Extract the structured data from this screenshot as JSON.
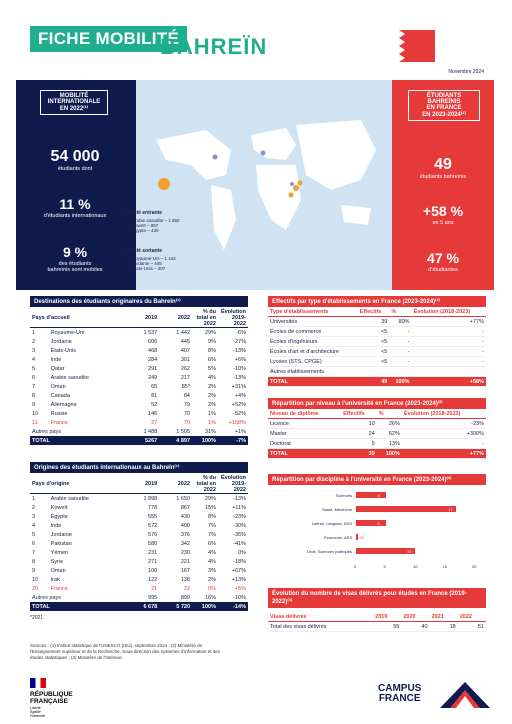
{
  "header": {
    "title_left": "FICHE MOBILITÉ",
    "title_right": "BAHREÏN",
    "date": "Novembre 2024"
  },
  "left": {
    "box": [
      "MOBILITÉ",
      "INTERNATIONALE",
      "EN 2022⁽¹⁾"
    ],
    "stat1": "54 000",
    "stat1_label": "étudiants dont",
    "stat2": "11 %",
    "stat2_label": "d'étudiants internationaux",
    "stat3": "9 %",
    "stat3_label": [
      "des étudiants",
      "bahreïnis sont mobiles"
    ]
  },
  "right": {
    "box": [
      "ÉTUDIANTS",
      "BAHREÏNIS",
      "EN FRANCE",
      "EN 2023-2024⁽²⁾"
    ],
    "stat1": "49",
    "stat1_label": "étudiants bahreïnis",
    "stat2": "+58 %",
    "stat2_label": "en 5 ans",
    "stat3": "47 %",
    "stat3_label": "d'étudiantes"
  },
  "map": {
    "in_title": "Mobilité entrante",
    "in_items": [
      "Arabie saoudite – 1 650",
      "Koweït – 867",
      "Égypte – 430"
    ],
    "out_title": "Mobilité sortante",
    "out_items": [
      "Royaume-Uni – 1 442",
      "Jordanie – 445",
      "États-Unis – 407"
    ]
  },
  "t1": {
    "title": "Destinations des étudiants originaires du Bahreïn⁽¹⁾",
    "head": [
      "Pays d'accueil",
      "2019",
      "2022",
      "% du total en 2022",
      "Évolution 2019-2022"
    ],
    "rows": [
      [
        "1",
        "Royaume-Uni",
        "1 537",
        "1 442",
        "29%",
        "-6%"
      ],
      [
        "2",
        "Jordanie",
        "606",
        "445",
        "9%",
        "-27%"
      ],
      [
        "3",
        "États-Unis",
        "468",
        "407",
        "8%",
        "-13%"
      ],
      [
        "4",
        "Inde",
        "284",
        "301",
        "6%",
        "+6%"
      ],
      [
        "5",
        "Qatar",
        "291",
        "262",
        "5%",
        "-10%"
      ],
      [
        "6",
        "Arabie saoudite",
        "249",
        "217",
        "4%",
        "-13%"
      ],
      [
        "7",
        "Oman",
        "65",
        "85*",
        "2%",
        "+31%"
      ],
      [
        "8",
        "Canada",
        "81",
        "84",
        "2%",
        "+4%"
      ],
      [
        "9",
        "Allemagne",
        "52",
        "79",
        "2%",
        "+52%"
      ],
      [
        "10",
        "Russie",
        "146",
        "70",
        "1%",
        "-52%"
      ],
      [
        "11",
        "France",
        "27",
        "70",
        "1%",
        "+158%"
      ]
    ],
    "other": [
      "Autres pays",
      "1 488",
      "1 505",
      "31%",
      "+1%"
    ],
    "total": [
      "TOTAL",
      "5267",
      "4 897",
      "100%",
      "-7%"
    ]
  },
  "t2": {
    "title": "Origines des étudiants internationaux au Bahreïn⁽¹⁾",
    "head": [
      "Pays d'origine",
      "2019",
      "2022",
      "% du total en 2022",
      "Évolution 2019-2022"
    ],
    "rows": [
      [
        "1",
        "Arabie saoudite",
        "1 898",
        "1 650",
        "29%",
        "-13%"
      ],
      [
        "2",
        "Koweït",
        "778",
        "867",
        "15%",
        "+11%"
      ],
      [
        "3",
        "Égypte",
        "555",
        "430",
        "8%",
        "-23%"
      ],
      [
        "4",
        "Inde",
        "572",
        "400",
        "7%",
        "-30%"
      ],
      [
        "5",
        "Jordanie",
        "576",
        "376",
        "7%",
        "-35%"
      ],
      [
        "6",
        "Pakistan",
        "580",
        "342",
        "6%",
        "-41%"
      ],
      [
        "7",
        "Yémen",
        "231",
        "230",
        "4%",
        "0%"
      ],
      [
        "8",
        "Syrie",
        "271",
        "221",
        "4%",
        "-18%"
      ],
      [
        "9",
        "Oman",
        "100",
        "167",
        "3%",
        "+67%"
      ],
      [
        "10",
        "Irak",
        "122",
        "138",
        "2%",
        "+13%"
      ],
      [
        "20",
        "France",
        "21",
        "22",
        "0%",
        "+5%"
      ]
    ],
    "other": [
      "Autres pays",
      "995",
      "899",
      "16%",
      "-10%"
    ],
    "total": [
      "TOTAL",
      "6 678",
      "5 720",
      "100%",
      "-14%"
    ],
    "note": "*2021"
  },
  "t3": {
    "title": "Effectifs par type d'établissements en France (2023-2024)⁽²⁾",
    "head": [
      "Type d'établissements",
      "Effectifs",
      "%",
      "Évolution (2018-2023)"
    ],
    "rows": [
      [
        "Universités",
        "39",
        "80%",
        "+77%"
      ],
      [
        "Écoles de commerce",
        "<5",
        "-",
        "-"
      ],
      [
        "Écoles d'ingénieurs",
        "<5",
        "-",
        "-"
      ],
      [
        "Écoles d'art et d'architecture",
        "<5",
        "-",
        "-"
      ],
      [
        "Lycées (STS, CPGE)",
        "<5",
        "-",
        "-"
      ],
      [
        "Autres établissements",
        "",
        "",
        ""
      ]
    ],
    "total": [
      "TOTAL",
      "49",
      "100%",
      "+58%"
    ]
  },
  "t4": {
    "title": "Répartition par niveau à l'université en France (2023-2024)⁽²⁾",
    "head": [
      "Niveau de diplôme",
      "Effectifs",
      "%",
      "Évolution (2018-2023)"
    ],
    "rows": [
      [
        "Licence",
        "10",
        "26%",
        "-23%"
      ],
      [
        "Master",
        "24",
        "62%",
        "+300%"
      ],
      [
        "Doctorat",
        "5",
        "13%",
        "-"
      ]
    ],
    "total": [
      "TOTAL",
      "39",
      "100%",
      "+77%"
    ]
  },
  "chart_data": {
    "type": "bar",
    "title": "Répartition par discipline à l'université en France (2023-2024)⁽²⁾",
    "categories": [
      "Sciences",
      "Santé, Médecine",
      "Lettres, Langues, SHS",
      "Économie, AES",
      "Droit, Sciences politiques"
    ],
    "values": [
      5,
      17,
      5,
      0,
      10
    ],
    "value_labels": [
      "5",
      "17",
      "5",
      "<5",
      "10"
    ],
    "xlim": [
      0,
      20
    ],
    "xticks": [
      "0",
      "5",
      "10",
      "15",
      "20"
    ]
  },
  "t5": {
    "title": "Évolution du nombre de visas délivrés pour études en France (2019-2022)⁽³⁾",
    "head": [
      "Visas délivrés",
      "2019",
      "2020",
      "2021",
      "2022"
    ],
    "row": [
      "Total des visas délivrés",
      "55",
      "40",
      "18",
      "51"
    ]
  },
  "footer": {
    "sources": "Sources : (1) Institut statistique de l'UNESCO (ISU), septembre 2024 ; (2) Ministère de l'Enseignement supérieur et de la Recherche, Sous-direction des systèmes d'information et des études statistiques ; (3) Ministère de l'Intérieur.",
    "rf": [
      "RÉPUBLIQUE",
      "FRANÇAISE"
    ],
    "rf_motto": [
      "Liberté",
      "Égalité",
      "Fraternité"
    ],
    "cf": [
      "CAMPUS",
      "FRANCE"
    ]
  }
}
